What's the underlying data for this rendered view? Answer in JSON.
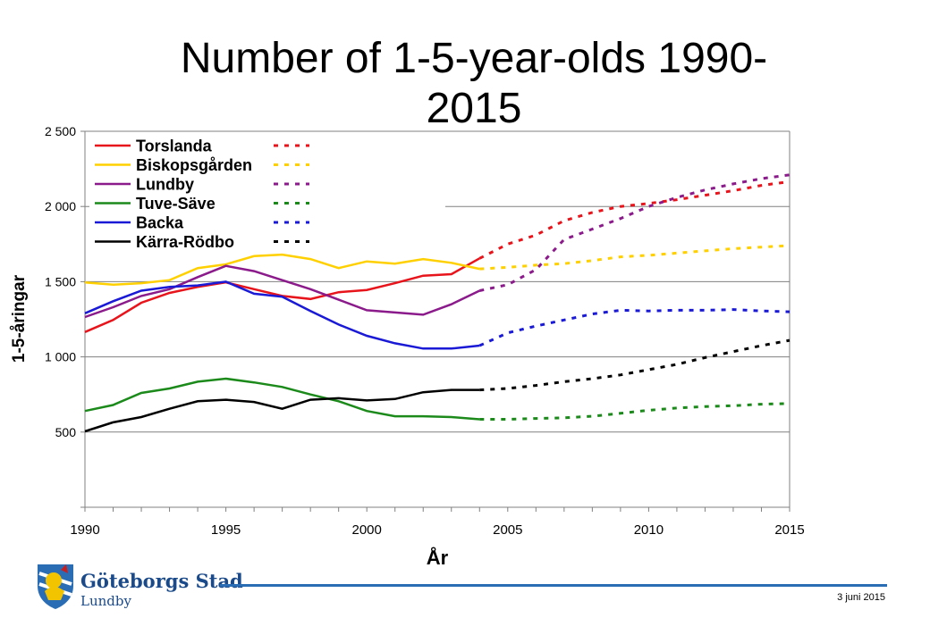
{
  "title": "Number of 1-5-year-olds 1990-\n2015",
  "footer": {
    "logo_name": "Göteborgs Stad",
    "logo_sub": "Lundby",
    "date": "3 juni 2015"
  },
  "chart_data": {
    "type": "line",
    "xlabel": "År",
    "ylabel": "1-5-åringar",
    "xlim": [
      1990,
      2015
    ],
    "ylim": [
      0,
      2500
    ],
    "x_ticks": [
      1990,
      1995,
      2000,
      2005,
      2010,
      2015
    ],
    "y_ticks": [
      500,
      1000,
      1500,
      2000,
      2500
    ],
    "y_tick_labels": [
      "500",
      "1 000",
      "1 500",
      "2 000",
      "2 500"
    ],
    "grid": "horizontal",
    "legend_position": "top-left",
    "historical_x": [
      1990,
      1991,
      1992,
      1993,
      1994,
      1995,
      1996,
      1997,
      1998,
      1999,
      2000,
      2001,
      2002,
      2003,
      2004
    ],
    "forecast_x": [
      2004,
      2005,
      2006,
      2007,
      2008,
      2009,
      2010,
      2011,
      2012,
      2013,
      2014,
      2015
    ],
    "series": [
      {
        "name": "Torslanda",
        "color": "#e8141b",
        "historical": [
          1165,
          1245,
          1360,
          1425,
          1465,
          1495,
          1450,
          1405,
          1385,
          1430,
          1445,
          1490,
          1540,
          1550,
          1655
        ],
        "forecast": [
          1655,
          1750,
          1810,
          1905,
          1960,
          2000,
          2020,
          2045,
          2075,
          2105,
          2140,
          2165
        ]
      },
      {
        "name": "Biskopsgården",
        "color": "#ffd000",
        "historical": [
          1495,
          1480,
          1490,
          1510,
          1590,
          1615,
          1670,
          1680,
          1650,
          1590,
          1635,
          1620,
          1650,
          1625,
          1585
        ],
        "forecast": [
          1585,
          1595,
          1610,
          1620,
          1640,
          1665,
          1675,
          1690,
          1705,
          1720,
          1730,
          1740
        ]
      },
      {
        "name": "Lundby",
        "color": "#8b1a8b",
        "historical": [
          1265,
          1330,
          1405,
          1450,
          1530,
          1605,
          1570,
          1510,
          1450,
          1380,
          1310,
          1295,
          1280,
          1350,
          1440
        ],
        "forecast": [
          1440,
          1480,
          1580,
          1780,
          1850,
          1920,
          2000,
          2060,
          2110,
          2150,
          2185,
          2210
        ]
      },
      {
        "name": "Tuve-Säve",
        "color": "#1b8a1b",
        "historical": [
          640,
          680,
          760,
          790,
          835,
          855,
          830,
          800,
          750,
          705,
          640,
          605,
          605,
          600,
          585
        ],
        "forecast": [
          585,
          585,
          590,
          595,
          605,
          625,
          645,
          660,
          670,
          675,
          685,
          690
        ]
      },
      {
        "name": "Backa",
        "color": "#1a1ad6",
        "historical": [
          1290,
          1370,
          1440,
          1465,
          1475,
          1500,
          1420,
          1400,
          1305,
          1215,
          1140,
          1090,
          1055,
          1055,
          1075
        ],
        "forecast": [
          1075,
          1160,
          1205,
          1245,
          1285,
          1310,
          1305,
          1310,
          1310,
          1315,
          1305,
          1300
        ]
      },
      {
        "name": "Kärra-Rödbo",
        "color": "#000000",
        "historical": [
          505,
          565,
          600,
          655,
          705,
          715,
          700,
          655,
          715,
          725,
          710,
          720,
          765,
          780,
          780
        ],
        "forecast": [
          780,
          790,
          810,
          835,
          855,
          880,
          915,
          950,
          995,
          1035,
          1075,
          1110
        ]
      }
    ]
  }
}
